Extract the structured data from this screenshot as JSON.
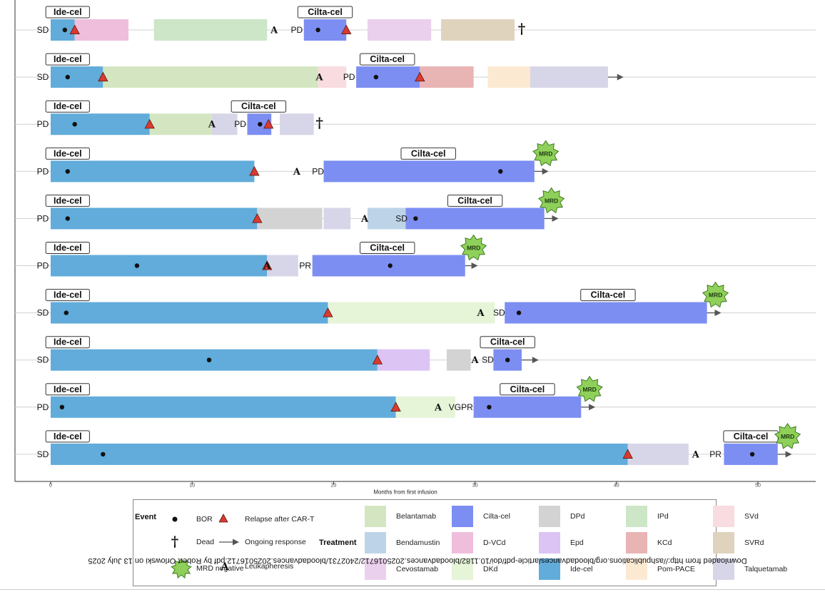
{
  "chart_data": {
    "type": "swimmer",
    "xlabel": "Months from first infusion",
    "xlim": [
      -2.5,
      54
    ],
    "x_ticks": [
      0,
      10,
      20,
      30,
      40,
      50
    ],
    "colors": {
      "Belantamab": "#d4e6c1",
      "Bendamustin": "#bdd3e8",
      "Cevostamab": "#ead0ec",
      "Cilta-cel": "#7d8ef2",
      "D-VCd": "#efbedd",
      "DKd": "#e6f4d8",
      "DPd": "#d3d3d3",
      "Epd": "#dcc4f4",
      "Ide-cel": "#61acda",
      "IPd": "#cce6c7",
      "KCd": "#e9b4b4",
      "Pom-PACE": "#fbe9d2",
      "SVd": "#f8dcdf",
      "SVRd": "#e0d3be",
      "Talquetamab": "#d7d6e8"
    },
    "rows": [
      {
        "response": "SD",
        "bars": [
          {
            "t": "Ide-cel",
            "s": 0,
            "e": 1.7
          },
          {
            "t": "D-VCd",
            "s": 1.7,
            "e": 5.5
          },
          {
            "t": "IPd",
            "s": 7.3,
            "e": 15.3
          },
          {
            "t": "Cilta-cel",
            "s": 17.9,
            "e": 20.9
          },
          {
            "t": "Cevostamab",
            "s": 22.4,
            "e": 26.9
          },
          {
            "t": "SVRd",
            "s": 27.6,
            "e": 32.8
          }
        ],
        "labels": [
          {
            "text": "Ide-cel",
            "x": 1.2
          },
          {
            "text": "Cilta-cel",
            "x": 19.4
          }
        ],
        "bor": [
          1.0,
          18.9
        ],
        "relapse": [
          1.7,
          20.9
        ],
        "leuk": [
          15.8
        ],
        "second_response": {
          "text": "PD",
          "x": 17.4
        },
        "death": 33.3,
        "arrow_end": null,
        "mrd": null
      },
      {
        "response": "SD",
        "bars": [
          {
            "t": "Ide-cel",
            "s": 0,
            "e": 3.7
          },
          {
            "t": "Belantamab",
            "s": 3.7,
            "e": 18.9
          },
          {
            "t": "SVd",
            "s": 18.9,
            "e": 20.9
          },
          {
            "t": "Cilta-cel",
            "s": 21.6,
            "e": 26.1
          },
          {
            "t": "KCd",
            "s": 26.1,
            "e": 29.9
          },
          {
            "t": "Pom-PACE",
            "s": 30.9,
            "e": 33.9
          },
          {
            "t": "Talquetamab",
            "s": 33.9,
            "e": 39.4
          }
        ],
        "labels": [
          {
            "text": "Ide-cel",
            "x": 1.2
          },
          {
            "text": "Cilta-cel",
            "x": 23.8
          }
        ],
        "bor": [
          1.2,
          23.0
        ],
        "relapse": [
          3.7,
          26.1
        ],
        "leuk": [
          19.0
        ],
        "second_response": {
          "text": "PD",
          "x": 21.1
        },
        "death": null,
        "arrow_end": 40.5,
        "mrd": null
      },
      {
        "response": "PD",
        "bars": [
          {
            "t": "Ide-cel",
            "s": 0,
            "e": 7.0
          },
          {
            "t": "Belantamab",
            "s": 7.0,
            "e": 11.4
          },
          {
            "t": "Talquetamab",
            "s": 11.4,
            "e": 13.2
          },
          {
            "t": "Cilta-cel",
            "s": 13.9,
            "e": 15.6
          },
          {
            "t": "Talquetamab",
            "s": 16.2,
            "e": 18.6
          }
        ],
        "labels": [
          {
            "text": "Ide-cel",
            "x": 1.2
          },
          {
            "text": "Cilta-cel",
            "x": 14.7
          }
        ],
        "bor": [
          1.7,
          14.8
        ],
        "relapse": [
          7.0,
          15.4
        ],
        "leuk": [
          11.4
        ],
        "second_response": {
          "text": "PD",
          "x": 13.4
        },
        "death": 19.0,
        "arrow_end": null,
        "mrd": null
      },
      {
        "response": "PD",
        "bars": [
          {
            "t": "Ide-cel",
            "s": 0,
            "e": 14.4
          },
          {
            "t": "Cilta-cel",
            "s": 19.3,
            "e": 34.2
          }
        ],
        "labels": [
          {
            "text": "Ide-cel",
            "x": 1.2
          },
          {
            "text": "Cilta-cel",
            "x": 26.7
          }
        ],
        "bor": [
          1.2,
          31.8
        ],
        "relapse": [
          14.4
        ],
        "leuk": [
          17.4
        ],
        "second_response": {
          "text": "PD",
          "x": 18.9
        },
        "death": null,
        "arrow_end": 35.2,
        "mrd": 35.0
      },
      {
        "response": "PD",
        "bars": [
          {
            "t": "Ide-cel",
            "s": 0,
            "e": 14.6
          },
          {
            "t": "DPd",
            "s": 14.6,
            "e": 19.2
          },
          {
            "t": "Talquetamab",
            "s": 19.3,
            "e": 21.2
          },
          {
            "t": "Bendamustin",
            "s": 22.4,
            "e": 25.1
          },
          {
            "t": "Cilta-cel",
            "s": 25.1,
            "e": 34.9
          }
        ],
        "labels": [
          {
            "text": "Ide-cel",
            "x": 1.2
          },
          {
            "text": "Cilta-cel",
            "x": 30.0
          }
        ],
        "bor": [
          1.2,
          25.8
        ],
        "relapse": [
          14.6
        ],
        "leuk": [
          22.2
        ],
        "second_response": {
          "text": "SD",
          "x": 24.8
        },
        "death": null,
        "arrow_end": 35.9,
        "mrd": 35.4
      },
      {
        "response": "PD",
        "bars": [
          {
            "t": "Ide-cel",
            "s": 0,
            "e": 15.3
          },
          {
            "t": "Talquetamab",
            "s": 15.3,
            "e": 17.5
          },
          {
            "t": "Cilta-cel",
            "s": 18.5,
            "e": 29.3
          }
        ],
        "labels": [
          {
            "text": "Ide-cel",
            "x": 1.2
          },
          {
            "text": "Cilta-cel",
            "x": 23.8
          }
        ],
        "bor": [
          6.1,
          24.0
        ],
        "relapse": [
          15.3
        ],
        "leuk": [
          15.3
        ],
        "second_response": {
          "text": "PR",
          "x": 18.0
        },
        "death": null,
        "arrow_end": 30.2,
        "mrd": 29.9
      },
      {
        "response": "SD",
        "bars": [
          {
            "t": "Ide-cel",
            "s": 0,
            "e": 19.6
          },
          {
            "t": "DKd",
            "s": 19.6,
            "e": 31.4
          },
          {
            "t": "Cilta-cel",
            "s": 32.1,
            "e": 46.4
          }
        ],
        "labels": [
          {
            "text": "Ide-cel",
            "x": 1.2
          },
          {
            "text": "Cilta-cel",
            "x": 39.4
          }
        ],
        "bor": [
          1.1,
          33.1
        ],
        "relapse": [
          19.6
        ],
        "leuk": [
          30.4
        ],
        "second_response": {
          "text": "SD",
          "x": 31.7
        },
        "death": null,
        "arrow_end": 47.4,
        "mrd": 47.0
      },
      {
        "response": "SD",
        "bars": [
          {
            "t": "Ide-cel",
            "s": 0,
            "e": 23.1
          },
          {
            "t": "Epd",
            "s": 23.1,
            "e": 26.8
          },
          {
            "t": "DPd",
            "s": 28.0,
            "e": 29.7
          },
          {
            "t": "Cilta-cel",
            "s": 31.3,
            "e": 33.3
          }
        ],
        "labels": [
          {
            "text": "Ide-cel",
            "x": 1.2
          },
          {
            "text": "Cilta-cel",
            "x": 32.3
          }
        ],
        "bor": [
          11.2,
          32.3
        ],
        "relapse": [
          23.1
        ],
        "leuk": [
          30.0
        ],
        "second_response": {
          "text": "SD",
          "x": 30.9
        },
        "death": null,
        "arrow_end": 34.5,
        "mrd": null
      },
      {
        "response": "PD",
        "bars": [
          {
            "t": "Ide-cel",
            "s": 0,
            "e": 24.4
          },
          {
            "t": "DKd",
            "s": 24.4,
            "e": 28.6
          },
          {
            "t": "Cilta-cel",
            "s": 29.9,
            "e": 37.5
          }
        ],
        "labels": [
          {
            "text": "Ide-cel",
            "x": 1.2
          },
          {
            "text": "Cilta-cel",
            "x": 33.7
          }
        ],
        "bor": [
          0.8,
          31.0
        ],
        "relapse": [
          24.4
        ],
        "leuk": [
          27.4
        ],
        "second_response": {
          "text": "VGPR",
          "x": 29.0
        },
        "death": null,
        "arrow_end": 38.5,
        "mrd": 38.1
      },
      {
        "response": "SD",
        "bars": [
          {
            "t": "Ide-cel",
            "s": 0,
            "e": 40.8
          },
          {
            "t": "Talquetamab",
            "s": 40.8,
            "e": 45.1
          },
          {
            "t": "Cilta-cel",
            "s": 47.6,
            "e": 51.4
          }
        ],
        "labels": [
          {
            "text": "Ide-cel",
            "x": 1.2
          },
          {
            "text": "Cilta-cel",
            "x": 49.5
          }
        ],
        "bor": [
          3.7,
          49.6
        ],
        "relapse": [
          40.8
        ],
        "leuk": [
          45.6
        ],
        "second_response": {
          "text": "PR",
          "x": 47.0
        },
        "death": null,
        "arrow_end": 52.4,
        "mrd": 52.1
      }
    ]
  },
  "legend": {
    "event_title": "Event",
    "treatment_title": "Treatment",
    "events": [
      {
        "key": "bor",
        "label": "BOR"
      },
      {
        "key": "relapse",
        "label": "Relapse after CAR-T"
      },
      {
        "key": "dead",
        "label": "Dead"
      },
      {
        "key": "ongoing",
        "label": "Ongoing response"
      },
      {
        "key": "mrd",
        "label": "MRD negative"
      },
      {
        "key": "leuk",
        "label": "Leukapheresis"
      }
    ],
    "treatments": [
      "Belantamab",
      "Cilta-cel",
      "DPd",
      "IPd",
      "SVd",
      "Bendamustin",
      "D-VCd",
      "Epd",
      "KCd",
      "SVRd",
      "Cevostamab",
      "DKd",
      "Ide-cel",
      "Pom-PACE",
      "Talquetamab"
    ],
    "mrd_badge": "MRD"
  },
  "watermark": "Downloaded from http://ashpublications.org/bloodadvances/article-pdf/doi/10.1182/bloodadvances.2025016712/2402731/bloodadvances.2025016712.pdf by Robert Orlowski on 13 July 2025"
}
